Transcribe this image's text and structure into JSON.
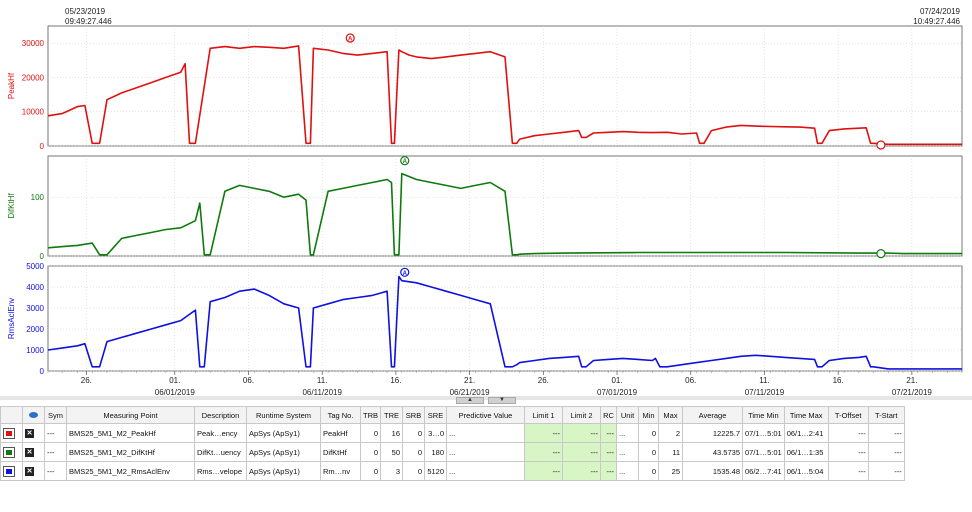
{
  "time_range": {
    "start_date": "05/23/2019",
    "start_time": "09:49:27.446",
    "end_date": "07/24/2019",
    "end_time": "10:49:27.446"
  },
  "colors": {
    "peak": "#e01010",
    "difk": "#0e7a0e",
    "rms": "#1010e0",
    "limit_bg": "#d8f5c6"
  },
  "chart_data": [
    {
      "type": "line",
      "ylabel": "PeakHf",
      "ylim": [
        0,
        35000
      ],
      "yticks": [
        0,
        10000,
        20000,
        30000
      ],
      "ytick_labels": [
        "0",
        "10000",
        "20000",
        "30000"
      ],
      "x_unit": "days since 05/23/2019 09:49",
      "xlim": [
        0,
        62
      ],
      "series": [
        {
          "color": "#e01010",
          "x": [
            0,
            1,
            2,
            2.5,
            3,
            3.5,
            4,
            5,
            6,
            7,
            8,
            9,
            9.3,
            9.6,
            10,
            11,
            12,
            13,
            14,
            15,
            16,
            17,
            17.5,
            17.8,
            18,
            19,
            20,
            21,
            22,
            23,
            23.3,
            23.5,
            23.8,
            24,
            24.5,
            25,
            26,
            27,
            28,
            29,
            30,
            31,
            31.5,
            31.8,
            32,
            33,
            34,
            35,
            36,
            36.2,
            36.5,
            37,
            38,
            39,
            40,
            41,
            42,
            43,
            44,
            44.2,
            44.5,
            45,
            46,
            47,
            48,
            49,
            50,
            51,
            52,
            52.2,
            52.5,
            53,
            54,
            55,
            55.5,
            55.8,
            56,
            57,
            58,
            59,
            60,
            61,
            62
          ],
          "y": [
            8800,
            9500,
            11500,
            11800,
            800,
            800,
            13500,
            15500,
            17000,
            18500,
            20000,
            21500,
            24000,
            800,
            800,
            28500,
            29000,
            28500,
            29000,
            28800,
            28500,
            29200,
            800,
            800,
            28500,
            28000,
            27000,
            26500,
            27000,
            27500,
            800,
            800,
            28000,
            27500,
            26500,
            26000,
            25500,
            26000,
            26500,
            27000,
            27500,
            26000,
            800,
            800,
            2000,
            3000,
            3500,
            4000,
            4500,
            2500,
            2500,
            3800,
            4000,
            4200,
            4000,
            3900,
            4000,
            3500,
            3800,
            800,
            800,
            4500,
            5500,
            6000,
            5800,
            5700,
            5600,
            5500,
            5200,
            800,
            800,
            4500,
            5000,
            5200,
            5300,
            800,
            800,
            500,
            500,
            500,
            500,
            500,
            500
          ]
        }
      ],
      "markers": [
        {
          "label": "A",
          "x": 20.5,
          "y": 31500
        },
        {
          "label": "V",
          "x": 56.5,
          "y": 300
        }
      ]
    },
    {
      "type": "line",
      "ylabel": "DifKtHf",
      "ylim": [
        0,
        170
      ],
      "yticks": [
        0,
        100
      ],
      "ytick_labels": [
        "0",
        "100"
      ],
      "x_unit": "days since 05/23/2019 09:49",
      "xlim": [
        0,
        62
      ],
      "series": [
        {
          "color": "#0e7a0e",
          "x": [
            0,
            1,
            2,
            3,
            3.5,
            4,
            5,
            6,
            7,
            8,
            9,
            10,
            10.3,
            10.6,
            11,
            12,
            13,
            14,
            15,
            16,
            17,
            17.5,
            17.8,
            18,
            19,
            20,
            21,
            22,
            23,
            23.3,
            23.5,
            23.8,
            24,
            25,
            26,
            27,
            28,
            29,
            30,
            31,
            31.5,
            31.8,
            32,
            33,
            35,
            40,
            45,
            50,
            55,
            57,
            58,
            62
          ],
          "y": [
            14,
            16,
            18,
            22,
            2,
            2,
            30,
            35,
            40,
            45,
            48,
            60,
            90,
            2,
            2,
            110,
            120,
            115,
            110,
            100,
            105,
            95,
            2,
            2,
            110,
            115,
            120,
            125,
            130,
            125,
            2,
            2,
            140,
            130,
            125,
            120,
            115,
            120,
            125,
            110,
            2,
            2,
            3,
            4,
            5,
            6,
            6,
            6,
            5,
            5,
            4,
            4
          ]
        }
      ],
      "markers": [
        {
          "label": "A",
          "x": 24.2,
          "y": 162
        },
        {
          "label": "V",
          "x": 56.5,
          "y": 4
        }
      ]
    },
    {
      "type": "line",
      "ylabel": "RmsAclEnv",
      "ylim": [
        0,
        5000
      ],
      "yticks": [
        0,
        1000,
        2000,
        3000,
        4000,
        5000
      ],
      "ytick_labels": [
        "0",
        "1000",
        "2000",
        "3000",
        "4000",
        "5000"
      ],
      "x_unit": "days since 05/23/2019 09:49",
      "xlim": [
        0,
        62
      ],
      "series": [
        {
          "color": "#1010e0",
          "x": [
            0,
            1,
            2,
            2.5,
            3,
            3.5,
            4,
            5,
            6,
            7,
            8,
            9,
            10,
            10.3,
            10.6,
            11,
            12,
            13,
            14,
            15,
            16,
            17,
            17.5,
            17.8,
            18,
            19,
            20,
            21,
            22,
            23,
            23.3,
            23.5,
            23.8,
            24,
            25,
            26,
            27,
            28,
            29,
            30,
            31,
            31.5,
            31.8,
            32,
            33,
            34,
            35,
            36,
            36.2,
            36.5,
            37,
            38,
            39,
            40,
            41,
            41.2,
            41.5,
            42,
            43,
            44,
            45,
            46,
            47,
            48,
            49,
            50,
            51,
            52,
            52.2,
            52.5,
            53,
            54,
            55,
            55.5,
            55.8,
            56,
            57,
            58,
            59,
            60,
            61,
            62
          ],
          "y": [
            1000,
            1100,
            1200,
            1300,
            200,
            200,
            1400,
            1600,
            1800,
            2000,
            2200,
            2400,
            2900,
            200,
            200,
            3300,
            3500,
            3800,
            3900,
            3600,
            3200,
            3000,
            200,
            200,
            3000,
            3200,
            3400,
            3500,
            3600,
            3800,
            200,
            200,
            4500,
            4300,
            4200,
            4000,
            3800,
            3600,
            3400,
            3200,
            200,
            200,
            300,
            400,
            500,
            600,
            650,
            700,
            200,
            200,
            500,
            550,
            600,
            550,
            500,
            600,
            200,
            200,
            300,
            400,
            500,
            600,
            700,
            750,
            700,
            650,
            600,
            550,
            200,
            200,
            500,
            600,
            650,
            700,
            200,
            200,
            100,
            100,
            100,
            100,
            100,
            100
          ]
        }
      ],
      "markers": [
        {
          "label": "A",
          "x": 24.2,
          "y": 4700
        }
      ]
    }
  ],
  "x_axis": {
    "ticks": [
      {
        "x": 2.6,
        "label": "26."
      },
      {
        "x": 8.6,
        "label": "01.",
        "sub": "06/01/2019"
      },
      {
        "x": 13.6,
        "label": "06."
      },
      {
        "x": 18.6,
        "label": "11.",
        "sub": "06/11/2019"
      },
      {
        "x": 23.6,
        "label": "16."
      },
      {
        "x": 28.6,
        "label": "21.",
        "sub": "06/21/2019"
      },
      {
        "x": 33.6,
        "label": "26."
      },
      {
        "x": 38.6,
        "label": "01.",
        "sub": "07/01/2019"
      },
      {
        "x": 43.6,
        "label": "06."
      },
      {
        "x": 48.6,
        "label": "11.",
        "sub": "07/11/2019"
      },
      {
        "x": 53.6,
        "label": "16."
      },
      {
        "x": 58.6,
        "label": "21.",
        "sub": "07/21/2019"
      }
    ]
  },
  "table": {
    "headers": [
      "",
      "",
      "Sym",
      "Measuring Point",
      "Description",
      "Runtime System",
      "Tag No.",
      "TRB",
      "TRE",
      "SRB",
      "SRE",
      "Predictive Value",
      "Limit 1",
      "Limit 2",
      "RC",
      "Unit",
      "Min",
      "Max",
      "Average",
      "Time Min",
      "Time Max",
      "T-Offset",
      "T-Start"
    ],
    "rows": [
      {
        "icon_color": "#e01010",
        "sym": "---",
        "measuring_point": "BMS25_5M1_M2_PeakHf",
        "description": "Peak…ency",
        "runtime_system": "ApSys (ApSy1)",
        "tag_no": "PeakHf",
        "trb": "0",
        "tre": "16",
        "srb": "0",
        "sre": "3…0",
        "predictive_value": "...",
        "limit1": "---",
        "limit2": "---",
        "rc": "---",
        "unit": "...",
        "min": "0",
        "max": "2",
        "average": "12225.7",
        "time_min": "07/1…5:01",
        "time_max": "06/1…2:41",
        "t_offset": "---",
        "t_start": "---"
      },
      {
        "icon_color": "#0e7a0e",
        "sym": "---",
        "measuring_point": "BMS25_5M1_M2_DifKtHf",
        "description": "DifKt…uency",
        "runtime_system": "ApSys (ApSy1)",
        "tag_no": "DifKtHf",
        "trb": "0",
        "tre": "50",
        "srb": "0",
        "sre": "180",
        "predictive_value": "...",
        "limit1": "---",
        "limit2": "---",
        "rc": "---",
        "unit": "...",
        "min": "0",
        "max": "11",
        "average": "43.5735",
        "time_min": "07/1…5:01",
        "time_max": "06/1…1:35",
        "t_offset": "---",
        "t_start": "---"
      },
      {
        "icon_color": "#1010e0",
        "sym": "---",
        "measuring_point": "BMS25_5M1_M2_RmsAclEnv",
        "description": "Rms…velope",
        "runtime_system": "ApSys (ApSy1)",
        "tag_no": "Rm…nv",
        "trb": "0",
        "tre": "3",
        "srb": "0",
        "sre": "5120",
        "predictive_value": "...",
        "limit1": "---",
        "limit2": "---",
        "rc": "---",
        "unit": "...",
        "min": "0",
        "max": "25",
        "average": "1535.48",
        "time_min": "06/2…7:41",
        "time_max": "06/1…5:04",
        "t_offset": "---",
        "t_start": "---"
      }
    ]
  }
}
